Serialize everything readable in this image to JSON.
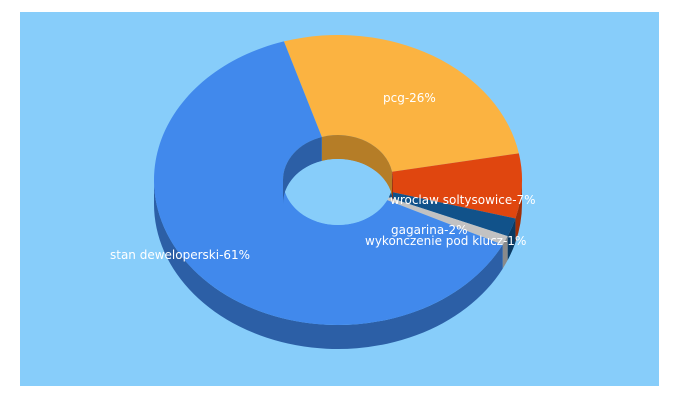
{
  "chart_data": {
    "type": "pie",
    "variant": "3d-donut",
    "title": "",
    "background_color": "#87cdfa",
    "slices": [
      {
        "label": "stan deweloperski-61%",
        "name": "stan deweloperski",
        "value": 61,
        "color": "#4189ec",
        "side_color": "#2c5fa6"
      },
      {
        "label": "pcg-26%",
        "name": "pcg",
        "value": 26,
        "color": "#fbb341",
        "side_color": "#b57d27"
      },
      {
        "label": "wroclaw soltysowice-7%",
        "name": "wroclaw soltysowice",
        "value": 7,
        "color": "#e0460f",
        "side_color": "#a02f08"
      },
      {
        "label": "gagarina-2%",
        "name": "gagarina",
        "value": 2,
        "color": "#11528a",
        "side_color": "#0b3a63"
      },
      {
        "label": "wykonczenie pod klucz-1%",
        "name": "wykonczenie pod klucz",
        "value": 1,
        "color": "#c2c2c2",
        "side_color": "#8a8a8a"
      }
    ]
  }
}
